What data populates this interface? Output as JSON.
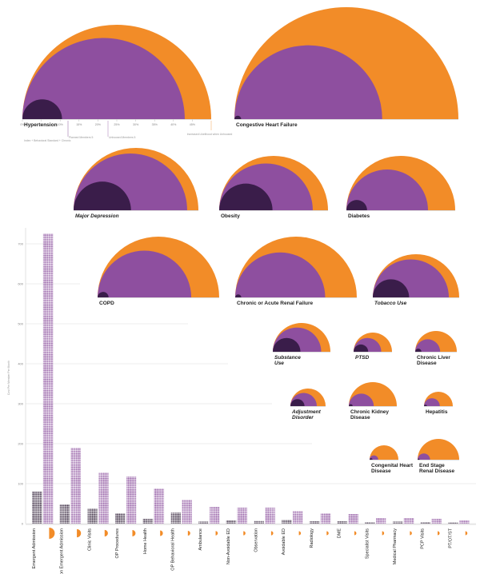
{
  "colors": {
    "orange": "#f28c28",
    "purple": "#8e4f9f",
    "dark": "#3a1d4a",
    "dot_dark": "#2b1a33",
    "dot_purple": "#8a4d9c",
    "grid": "#dddddd"
  },
  "chart_data": [
    {
      "type": "area",
      "description_kind": "nested semicircles",
      "panels": [
        {
          "name": "Hypertension",
          "label_style": "bold",
          "orange": 1.0,
          "purple": 0.86,
          "dark": 0.21
        },
        {
          "name": "Congestive Heart Failure",
          "label_style": "bold",
          "orange": 1.0,
          "purple": 0.66,
          "dark": 0.03
        },
        {
          "name": "Major Depression",
          "label_style": "italic",
          "orange": 1.0,
          "purple": 0.91,
          "dark": 0.46
        },
        {
          "name": "Obesity",
          "label_style": "bold",
          "orange": 1.0,
          "purple": 0.86,
          "dark": 0.49
        },
        {
          "name": "Diabetes",
          "label_style": "bold",
          "orange": 1.0,
          "purple": 0.75,
          "dark": 0.19
        },
        {
          "name": "COPD",
          "label_style": "bold",
          "orange": 1.0,
          "purple": 0.77,
          "dark": 0.09
        },
        {
          "name": "Chronic or Acute Renal Failure",
          "label_style": "bold",
          "orange": 1.0,
          "purple": 0.74,
          "dark": 0.05
        },
        {
          "name": "Tobacco Use",
          "label_style": "italic",
          "orange": 1.0,
          "purple": 0.88,
          "dark": 0.42
        },
        {
          "name": "Substance Use",
          "label_style": "italic",
          "orange": 1.0,
          "purple": 0.84,
          "dark": 0.48
        },
        {
          "name": "PTSD",
          "label_style": "italic",
          "orange": 1.0,
          "purple": 0.72,
          "dark": 0.38
        },
        {
          "name": "Chronic Liver Disease",
          "label_style": "bold",
          "orange": 1.0,
          "purple": 0.6,
          "dark": 0.15
        },
        {
          "name": "Adjustment Disorder",
          "label_style": "italic",
          "orange": 1.0,
          "purple": 0.75,
          "dark": 0.4
        },
        {
          "name": "Chronic Kidney Disease",
          "label_style": "bold",
          "orange": 1.0,
          "purple": 0.52,
          "dark": 0.08
        },
        {
          "name": "Hepatitis",
          "label_style": "bold",
          "orange": 1.0,
          "purple": 0.55,
          "dark": 0.1
        },
        {
          "name": "Congenital Heart Disease",
          "label_style": "bold",
          "orange": 1.0,
          "purple": 0.3,
          "dark": 0.1
        },
        {
          "name": "End Stage Renal Disease",
          "label_style": "bold",
          "orange": 1.0,
          "purple": 0.3,
          "dark": 0.05
        }
      ],
      "hypertension_axis": {
        "ticks": [
          "0%",
          "5%",
          "10%",
          "15%",
          "20%",
          "25%",
          "30%",
          "35%",
          "40%",
          "45%"
        ],
        "legend": {
          "index": "Index + Behavioral Standard + Chronic",
          "planned": "Planned Members 5",
          "unhoused": "Unhoused Members 5",
          "increase": "Increased Likelihood when Unhoused"
        }
      }
    },
    {
      "type": "bar",
      "ylabel": "Cost Per Member Per Month",
      "yticks": [
        0,
        100,
        200,
        300,
        400,
        500,
        600,
        700
      ],
      "ylim": [
        0,
        730
      ],
      "categories": [
        "Emergent Admission",
        "Non Emergent Admission",
        "Clinic Visits",
        "OP Procedures",
        "Home Health",
        "OP Behavioral Health",
        "Ambulance",
        "Non-Avoidable ED",
        "Observation",
        "Avoidable ED",
        "Radiology",
        "DME",
        "Specialist Visits",
        "Medical Pharmacy",
        "PCP Visits",
        "PT/OT/ST"
      ],
      "series": [
        {
          "values": [
            80,
            48,
            38,
            26,
            12,
            28,
            5,
            8,
            7,
            9,
            6,
            6,
            4,
            5,
            4,
            3
          ]
        },
        {
          "values": [
            725,
            190,
            128,
            118,
            88,
            60,
            42,
            40,
            40,
            32,
            26,
            24,
            14,
            14,
            12,
            8
          ]
        }
      ]
    }
  ]
}
